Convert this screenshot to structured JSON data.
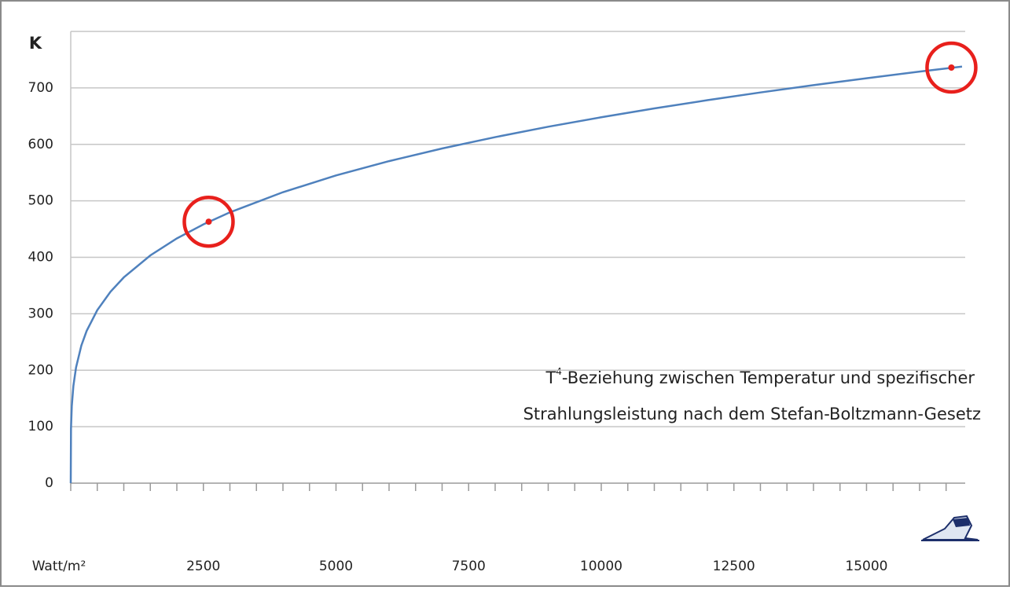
{
  "chart_data": {
    "type": "line",
    "xlabel": "Watt/m²",
    "x": [
      0,
      5,
      20,
      50,
      100,
      200,
      300,
      500,
      750,
      1000,
      1500,
      2000,
      2500,
      3000,
      4000,
      5000,
      6000,
      7000,
      8000,
      9000,
      10000,
      11000,
      12000,
      13000,
      14000,
      15000,
      16000,
      16800
    ],
    "series": [
      {
        "color": "#4f81bd",
        "values": [
          0,
          96.9,
          137.0,
          172.3,
          204.9,
          243.7,
          269.7,
          306.4,
          339.1,
          364.4,
          403.3,
          433.4,
          458.2,
          479.6,
          515.3,
          544.9,
          570.3,
          592.7,
          612.8,
          631.2,
          648.0,
          663.6,
          678.2,
          691.9,
          704.9,
          717.1,
          728.8,
          737.7
        ]
      }
    ],
    "highlights": {
      "color": "#e8201c",
      "x": [
        2600,
        16600
      ],
      "values": [
        463,
        736
      ]
    },
    "xlim": [
      0,
      16860
    ],
    "ylim": [
      0,
      800
    ],
    "xticks": [
      2500,
      5000,
      7500,
      10000,
      12500,
      15000
    ],
    "xminor_ticks": [
      0,
      500,
      1000,
      1500,
      2000,
      2500,
      3000,
      3500,
      4000,
      4500,
      5000,
      5500,
      6000,
      6500,
      7000,
      7500,
      8000,
      8500,
      9000,
      9500,
      10000,
      10500,
      11000,
      11500,
      12000,
      12500,
      13000,
      13500,
      14000,
      14500,
      15000,
      15500,
      16000,
      16500
    ],
    "yticks": [
      0,
      100,
      200,
      300,
      400,
      500,
      600,
      700,
      {
        "value": 800,
        "label": "K"
      }
    ],
    "grid": true,
    "annotation": {
      "base": "T",
      "sup": "4",
      "line1": "-Beziehung zwischen Temperatur und spezifischer",
      "line2": "Strahlungsleistung nach dem Stefan-Boltzmann-Gesetz"
    }
  }
}
